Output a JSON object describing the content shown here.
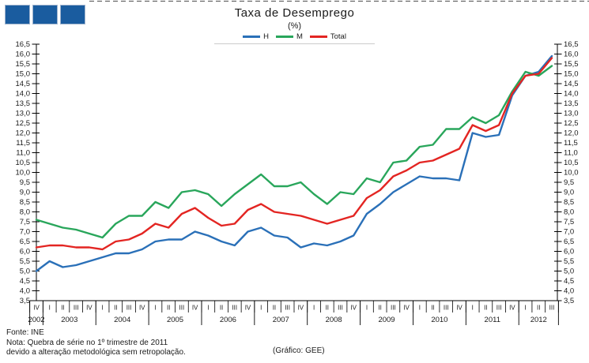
{
  "logo": {
    "square_count": 3,
    "color": "#1A5C9F"
  },
  "chart_data": {
    "type": "line",
    "title": "Taxa de Desemprego",
    "subtitle": "(%)",
    "legend_position": "top",
    "grid": false,
    "ylim": [
      3.5,
      16.5
    ],
    "ytick_step": 0.5,
    "ylabel_decimal_separator": ",",
    "x_quarters": [
      "IV",
      "I",
      "II",
      "III",
      "IV",
      "I",
      "II",
      "III",
      "IV",
      "I",
      "II",
      "III",
      "IV",
      "I",
      "II",
      "III",
      "IV",
      "I",
      "II",
      "III",
      "IV",
      "I",
      "II",
      "III",
      "IV",
      "I",
      "II",
      "III",
      "IV",
      "I",
      "II",
      "III",
      "IV",
      "I",
      "II",
      "III",
      "IV",
      "I",
      "II",
      "III"
    ],
    "x_years": [
      {
        "label": "2002",
        "span": 1
      },
      {
        "label": "2003",
        "span": 4
      },
      {
        "label": "2004",
        "span": 4
      },
      {
        "label": "2005",
        "span": 4
      },
      {
        "label": "2006",
        "span": 4
      },
      {
        "label": "2007",
        "span": 4
      },
      {
        "label": "2008",
        "span": 4
      },
      {
        "label": "2009",
        "span": 4
      },
      {
        "label": "2010",
        "span": 4
      },
      {
        "label": "2011",
        "span": 4
      },
      {
        "label": "2012",
        "span": 3
      }
    ],
    "series": [
      {
        "name": "H",
        "color": "#2A70B8",
        "values": [
          5.0,
          5.5,
          5.2,
          5.3,
          5.5,
          5.7,
          5.9,
          5.9,
          6.1,
          6.5,
          6.6,
          6.6,
          7.0,
          6.8,
          6.5,
          6.3,
          7.0,
          7.2,
          6.8,
          6.7,
          6.2,
          6.4,
          6.3,
          6.5,
          6.8,
          7.9,
          8.4,
          9.0,
          9.4,
          9.8,
          9.7,
          9.7,
          9.6,
          12.0,
          11.8,
          11.9,
          13.9,
          14.9,
          15.1,
          15.9
        ]
      },
      {
        "name": "M",
        "color": "#29A65B",
        "values": [
          7.6,
          7.4,
          7.2,
          7.1,
          6.9,
          6.7,
          7.4,
          7.8,
          7.8,
          8.5,
          8.2,
          9.0,
          9.1,
          8.9,
          8.3,
          8.9,
          9.4,
          9.9,
          9.3,
          9.3,
          9.5,
          8.9,
          8.4,
          9.0,
          8.9,
          9.7,
          9.5,
          10.5,
          10.6,
          11.3,
          11.4,
          12.2,
          12.2,
          12.8,
          12.5,
          12.9,
          14.1,
          15.1,
          14.9,
          15.4
        ]
      },
      {
        "name": "Total",
        "color": "#E32522",
        "values": [
          6.2,
          6.3,
          6.3,
          6.2,
          6.2,
          6.1,
          6.5,
          6.6,
          6.9,
          7.4,
          7.2,
          7.9,
          8.2,
          7.7,
          7.3,
          7.4,
          8.1,
          8.4,
          8.0,
          7.9,
          7.8,
          7.6,
          7.4,
          7.6,
          7.8,
          8.7,
          9.1,
          9.8,
          10.1,
          10.5,
          10.6,
          10.9,
          11.2,
          12.4,
          12.1,
          12.4,
          14.0,
          14.9,
          15.0,
          15.8
        ]
      }
    ]
  },
  "footer": {
    "source": "Fonte: INE",
    "note_line1": "Nota: Quebra de série no 1º trimestre de 2011",
    "note_line2": "devido a alteração metodológica sem retropolação.",
    "credit": "(Gráfico:  GEE)"
  }
}
